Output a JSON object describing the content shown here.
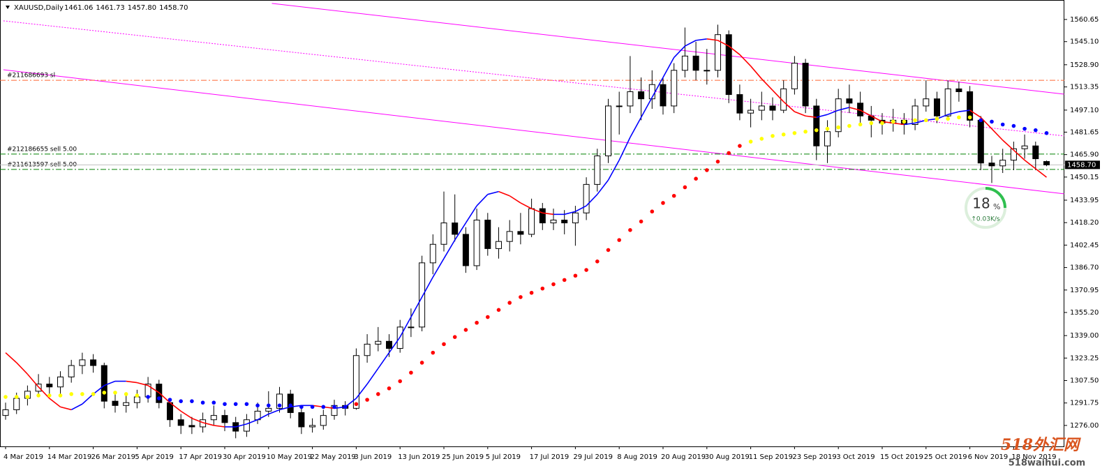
{
  "header": {
    "symbol": "XAUUSD,Daily",
    "last_bar_labels": [
      "1461.06",
      "1461.73",
      "1457.80",
      "1458.70"
    ]
  },
  "overlay": {
    "percent": "18",
    "unit": "%",
    "speed": "↑0.03K/s"
  },
  "watermark": {
    "name": "518外汇网",
    "site": "518waihui.com"
  },
  "chart_data": {
    "type": "candlestick",
    "bull_color": "#ffffff",
    "bear_color": "#000000",
    "outline_color": "#000000",
    "categories": [
      "4 Mar 2019",
      null,
      null,
      null,
      "14 Mar 2019",
      null,
      null,
      null,
      "26 Mar 2019",
      null,
      null,
      null,
      "5 Apr 2019",
      null,
      null,
      null,
      "17 Apr 2019",
      null,
      null,
      null,
      "30 Apr 2019",
      null,
      null,
      null,
      "10 May 2019",
      null,
      null,
      null,
      "22 May 2019",
      null,
      null,
      null,
      "3 Jun 2019",
      null,
      null,
      null,
      "13 Jun 2019",
      null,
      null,
      null,
      "25 Jun 2019",
      null,
      null,
      null,
      "5 Jul 2019",
      null,
      null,
      null,
      "17 Jul 2019",
      null,
      null,
      null,
      "29 Jul 2019",
      null,
      null,
      null,
      "8 Aug 2019",
      null,
      null,
      null,
      "20 Aug 2019",
      null,
      null,
      null,
      "30 Aug 2019",
      null,
      null,
      null,
      "11 Sep 2019",
      null,
      null,
      null,
      "23 Sep 2019",
      null,
      null,
      null,
      "3 Oct 2019",
      null,
      null,
      null,
      "15 Oct 2019",
      null,
      null,
      null,
      "25 Oct 2019",
      null,
      null,
      null,
      "6 Nov 2019",
      null,
      null,
      null,
      "18 Nov 2019",
      null,
      null,
      null
    ],
    "ohlc": [
      [
        1283,
        1292,
        1280,
        1287
      ],
      [
        1287,
        1299,
        1284,
        1295
      ],
      [
        1295,
        1304,
        1290,
        1300
      ],
      [
        1300,
        1312,
        1296,
        1305
      ],
      [
        1305,
        1310,
        1296,
        1303
      ],
      [
        1303,
        1314,
        1298,
        1310
      ],
      [
        1310,
        1322,
        1306,
        1318
      ],
      [
        1318,
        1327,
        1312,
        1322
      ],
      [
        1322,
        1326,
        1313,
        1318
      ],
      [
        1318,
        1320,
        1288,
        1293
      ],
      [
        1293,
        1298,
        1285,
        1290
      ],
      [
        1290,
        1297,
        1285,
        1292
      ],
      [
        1292,
        1301,
        1288,
        1296
      ],
      [
        1296,
        1310,
        1292,
        1305
      ],
      [
        1305,
        1308,
        1288,
        1292
      ],
      [
        1292,
        1295,
        1275,
        1280
      ],
      [
        1280,
        1284,
        1270,
        1276
      ],
      [
        1276,
        1282,
        1270,
        1275
      ],
      [
        1275,
        1285,
        1271,
        1280
      ],
      [
        1280,
        1290,
        1276,
        1283
      ],
      [
        1283,
        1287,
        1272,
        1278
      ],
      [
        1278,
        1282,
        1267,
        1272
      ],
      [
        1272,
        1284,
        1268,
        1280
      ],
      [
        1280,
        1292,
        1277,
        1286
      ],
      [
        1286,
        1300,
        1282,
        1288
      ],
      [
        1288,
        1303,
        1285,
        1298
      ],
      [
        1298,
        1301,
        1281,
        1285
      ],
      [
        1285,
        1288,
        1270,
        1275
      ],
      [
        1275,
        1281,
        1271,
        1276
      ],
      [
        1276,
        1287,
        1273,
        1283
      ],
      [
        1283,
        1294,
        1280,
        1290
      ],
      [
        1290,
        1293,
        1283,
        1288
      ],
      [
        1288,
        1330,
        1287,
        1325
      ],
      [
        1325,
        1340,
        1320,
        1333
      ],
      [
        1333,
        1345,
        1328,
        1335
      ],
      [
        1335,
        1340,
        1324,
        1330
      ],
      [
        1330,
        1350,
        1327,
        1345
      ],
      [
        1345,
        1358,
        1338,
        1345
      ],
      [
        1345,
        1395,
        1342,
        1390
      ],
      [
        1390,
        1410,
        1382,
        1403
      ],
      [
        1403,
        1440,
        1398,
        1418
      ],
      [
        1418,
        1438,
        1405,
        1410
      ],
      [
        1410,
        1415,
        1383,
        1388
      ],
      [
        1388,
        1428,
        1385,
        1420
      ],
      [
        1420,
        1425,
        1395,
        1400
      ],
      [
        1400,
        1415,
        1393,
        1405
      ],
      [
        1405,
        1420,
        1398,
        1412
      ],
      [
        1412,
        1425,
        1403,
        1410
      ],
      [
        1410,
        1435,
        1408,
        1428
      ],
      [
        1428,
        1432,
        1413,
        1418
      ],
      [
        1418,
        1428,
        1413,
        1420
      ],
      [
        1420,
        1427,
        1410,
        1418
      ],
      [
        1418,
        1430,
        1402,
        1425
      ],
      [
        1425,
        1450,
        1420,
        1445
      ],
      [
        1445,
        1470,
        1440,
        1465
      ],
      [
        1465,
        1505,
        1460,
        1500
      ],
      [
        1500,
        1510,
        1480,
        1500
      ],
      [
        1500,
        1535,
        1495,
        1510
      ],
      [
        1510,
        1520,
        1490,
        1505
      ],
      [
        1505,
        1525,
        1498,
        1515
      ],
      [
        1515,
        1520,
        1494,
        1500
      ],
      [
        1500,
        1530,
        1495,
        1525
      ],
      [
        1525,
        1555,
        1520,
        1535
      ],
      [
        1535,
        1545,
        1518,
        1525
      ],
      [
        1525,
        1540,
        1515,
        1525
      ],
      [
        1525,
        1557,
        1520,
        1550
      ],
      [
        1550,
        1553,
        1502,
        1508
      ],
      [
        1508,
        1515,
        1490,
        1495
      ],
      [
        1495,
        1505,
        1485,
        1497
      ],
      [
        1497,
        1510,
        1490,
        1500
      ],
      [
        1500,
        1506,
        1490,
        1497
      ],
      [
        1497,
        1518,
        1495,
        1512
      ],
      [
        1512,
        1535,
        1508,
        1530
      ],
      [
        1530,
        1533,
        1495,
        1500
      ],
      [
        1500,
        1505,
        1462,
        1472
      ],
      [
        1472,
        1490,
        1460,
        1482
      ],
      [
        1482,
        1512,
        1478,
        1505
      ],
      [
        1505,
        1515,
        1495,
        1502
      ],
      [
        1502,
        1510,
        1488,
        1493
      ],
      [
        1493,
        1500,
        1478,
        1490
      ],
      [
        1490,
        1495,
        1480,
        1488
      ],
      [
        1488,
        1498,
        1482,
        1490
      ],
      [
        1490,
        1495,
        1480,
        1487
      ],
      [
        1487,
        1505,
        1483,
        1500
      ],
      [
        1500,
        1518,
        1496,
        1505
      ],
      [
        1505,
        1510,
        1488,
        1493
      ],
      [
        1493,
        1518,
        1490,
        1512
      ],
      [
        1512,
        1517,
        1503,
        1510
      ],
      [
        1510,
        1514,
        1485,
        1490
      ],
      [
        1490,
        1493,
        1455,
        1460
      ],
      [
        1460,
        1465,
        1446,
        1458
      ],
      [
        1458,
        1470,
        1453,
        1462
      ],
      [
        1462,
        1475,
        1455,
        1470
      ],
      [
        1470,
        1480,
        1463,
        1472
      ],
      [
        1472,
        1475,
        1455,
        1463
      ],
      [
        1461.06,
        1461.73,
        1457.8,
        1458.7
      ]
    ],
    "fast_ma": {
      "up_color": "#0000ff",
      "down_color": "#ff0000",
      "values": [
        1327,
        1320,
        1312,
        1303,
        1295,
        1289,
        1287,
        1291,
        1298,
        1304,
        1307,
        1307,
        1306,
        1304,
        1299,
        1292,
        1286,
        1281,
        1278,
        1276,
        1275,
        1275,
        1277,
        1280,
        1284,
        1287,
        1289,
        1290,
        1290,
        1289,
        1288,
        1289,
        1295,
        1305,
        1316,
        1327,
        1338,
        1352,
        1366,
        1380,
        1393,
        1406,
        1418,
        1430,
        1438,
        1440,
        1437,
        1432,
        1428,
        1425,
        1424,
        1424,
        1426,
        1430,
        1438,
        1448,
        1462,
        1478,
        1492,
        1506,
        1520,
        1534,
        1542,
        1546,
        1547,
        1546,
        1542,
        1536,
        1528,
        1519,
        1511,
        1503,
        1496,
        1493,
        1492,
        1494,
        1497,
        1499,
        1497,
        1493,
        1489,
        1488,
        1487,
        1488,
        1490,
        1491,
        1494,
        1496,
        1497,
        1492,
        1484,
        1476,
        1469,
        1462,
        1456,
        1450
      ]
    },
    "slow_ma": {
      "values": [
        1296,
        1296,
        1296,
        1297,
        1297,
        1297,
        1298,
        1298,
        1298,
        1299,
        1299,
        1298,
        1297,
        1296,
        1295,
        1294,
        1293,
        1293,
        1292,
        1292,
        1291,
        1291,
        1291,
        1290,
        1290,
        1290,
        1290,
        1289,
        1289,
        1289,
        1289,
        1289,
        1291,
        1294,
        1298,
        1302,
        1307,
        1313,
        1320,
        1327,
        1333,
        1338,
        1343,
        1348,
        1352,
        1357,
        1362,
        1366,
        1369,
        1372,
        1375,
        1378,
        1381,
        1385,
        1391,
        1399,
        1406,
        1413,
        1419,
        1426,
        1432,
        1437,
        1443,
        1449,
        1455,
        1461,
        1467,
        1472,
        1475,
        1477,
        1479,
        1480,
        1481,
        1482,
        1483,
        1484,
        1485,
        1486,
        1487,
        1488,
        1488,
        1489,
        1489,
        1490,
        1490,
        1491,
        1491,
        1492,
        1492,
        1490,
        1489,
        1487,
        1486,
        1484,
        1483,
        1481
      ],
      "colors": [
        "#ff0",
        "#ff0",
        "#ff0",
        "#ff0",
        "#ff0",
        "#ff0",
        "#ff0",
        "#ff0",
        "#ff0",
        "#ff0",
        "#ff0",
        "#ff0",
        "#ff0",
        "#00f",
        "#00f",
        "#00f",
        "#00f",
        "#00f",
        "#00f",
        "#00f",
        "#00f",
        "#00f",
        "#00f",
        "#00f",
        "#00f",
        "#00f",
        "#00f",
        "#00f",
        "#00f",
        "#00f",
        "#00f",
        "#00f",
        "#f00",
        "#f00",
        "#f00",
        "#f00",
        "#f00",
        "#f00",
        "#f00",
        "#f00",
        "#f00",
        "#f00",
        "#f00",
        "#f00",
        "#f00",
        "#f00",
        "#f00",
        "#f00",
        "#f00",
        "#f00",
        "#f00",
        "#f00",
        "#f00",
        "#f00",
        "#f00",
        "#f00",
        "#f00",
        "#f00",
        "#f00",
        "#f00",
        "#f00",
        "#f00",
        "#f00",
        "#f00",
        "#f00",
        "#f00",
        "#f00",
        "#f00",
        "#ff0",
        "#ff0",
        "#ff0",
        "#ff0",
        "#ff0",
        "#ff0",
        "#ff0",
        "#ff0",
        "#ff0",
        "#ff0",
        "#ff0",
        "#ff0",
        "#ff0",
        "#ff0",
        "#ff0",
        "#ff0",
        "#ff0",
        "#ff0",
        "#ff0",
        "#ff0",
        "#ff0",
        "#00f",
        "#00f",
        "#00f",
        "#00f",
        "#00f",
        "#00f",
        "#00f"
      ]
    },
    "trendlines": [
      {
        "x": [
          24.3,
          96.6
        ],
        "y": [
          1571.9,
          1508.3
        ],
        "color": "#ff00ff",
        "style": "solid"
      },
      {
        "x": [
          -0.2,
          96.6
        ],
        "y": [
          1559.7,
          1479
        ],
        "color": "#ff00ff",
        "style": "dotted"
      },
      {
        "x": [
          -0.2,
          96.6
        ],
        "y": [
          1525.4,
          1438.4
        ],
        "color": "#ff00ff",
        "style": "solid"
      }
    ],
    "levels": [
      {
        "price": 1518,
        "label": "#211686693 sl",
        "color": "#ff6633"
      },
      {
        "price": 1466.3,
        "label": "#212186655 sell 5.00",
        "color": "#008000"
      },
      {
        "price": 1455.5,
        "label": "#211613597 sell 5.00",
        "color": "#008000"
      }
    ],
    "last_price_color": "#c0c0c0",
    "last_price_label": "1458.70",
    "ylim": [
      1261.3,
      1574.3
    ],
    "yticks": [
      1560.65,
      {
        "value": 1545.1,
        "label": "1545.10"
      },
      {
        "value": 1528.9,
        "label": "1528.90"
      },
      1513.35,
      {
        "value": 1497.1,
        "label": "1497.10"
      },
      1481.65,
      {
        "value": 1465.9,
        "label": "1465.90"
      },
      1450.15,
      1433.95,
      {
        "value": 1418.2,
        "label": "1418.20"
      },
      1402.45,
      {
        "value": 1386.7,
        "label": "1386.70"
      },
      1370.95,
      {
        "value": 1355.2,
        "label": "1355.20"
      },
      {
        "value": 1339,
        "label": "1339.00"
      },
      1323.25,
      {
        "value": 1307.5,
        "label": "1307.50"
      },
      1291.75,
      {
        "value": 1276,
        "label": "1276.00"
      }
    ],
    "grid": false
  }
}
